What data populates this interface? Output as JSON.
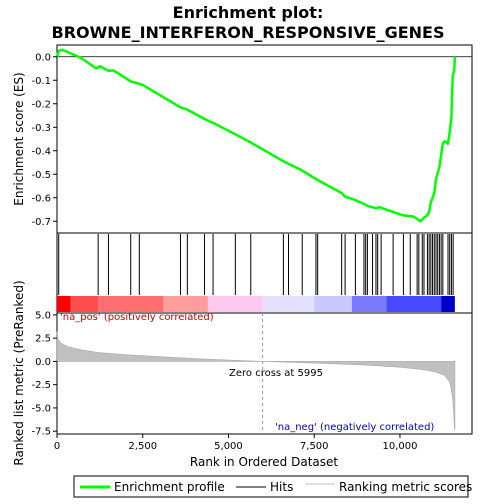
{
  "chart_data": {
    "type": "line",
    "title": "Enrichment plot:\nBROWNE_INTERFERON_RESPONSIVE_GENES",
    "title_lines": [
      "Enrichment plot:",
      "BROWNE_INTERFERON_RESPONSIVE_GENES"
    ],
    "es_panel": {
      "ylabel": "Enrichment score (ES)",
      "ylim": [
        -0.75,
        0.05
      ],
      "yticks": [
        0.0,
        -0.1,
        -0.2,
        -0.3,
        -0.4,
        -0.5,
        -0.6,
        -0.7
      ],
      "ytick_labels": [
        "0.0",
        "-0.1",
        "-0.2",
        "-0.3",
        "-0.4",
        "-0.5",
        "-0.6",
        "-0.7"
      ],
      "series": [
        {
          "name": "Enrichment profile",
          "color": "#00ff00",
          "points": [
            [
              0,
              0.0
            ],
            [
              50,
              0.025
            ],
            [
              150,
              0.03
            ],
            [
              700,
              -0.005
            ],
            [
              1150,
              -0.05
            ],
            [
              1200,
              -0.045
            ],
            [
              1250,
              -0.04
            ],
            [
              1500,
              -0.06
            ],
            [
              1650,
              -0.058
            ],
            [
              2150,
              -0.105
            ],
            [
              2400,
              -0.115
            ],
            [
              2500,
              -0.12
            ],
            [
              3600,
              -0.215
            ],
            [
              3800,
              -0.225
            ],
            [
              4300,
              -0.265
            ],
            [
              4600,
              -0.285
            ],
            [
              5200,
              -0.33
            ],
            [
              5650,
              -0.365
            ],
            [
              6600,
              -0.445
            ],
            [
              6750,
              -0.455
            ],
            [
              7100,
              -0.48
            ],
            [
              7550,
              -0.52
            ],
            [
              7600,
              -0.525
            ],
            [
              8300,
              -0.58
            ],
            [
              8400,
              -0.595
            ],
            [
              8700,
              -0.61
            ],
            [
              9000,
              -0.63
            ],
            [
              9050,
              -0.635
            ],
            [
              9200,
              -0.64
            ],
            [
              9300,
              -0.645
            ],
            [
              9400,
              -0.64
            ],
            [
              9800,
              -0.66
            ],
            [
              10100,
              -0.675
            ],
            [
              10400,
              -0.68
            ],
            [
              10550,
              -0.695
            ],
            [
              10600,
              -0.7
            ],
            [
              10700,
              -0.685
            ],
            [
              10800,
              -0.675
            ],
            [
              10850,
              -0.66
            ],
            [
              10900,
              -0.62
            ],
            [
              11000,
              -0.58
            ],
            [
              11050,
              -0.52
            ],
            [
              11150,
              -0.47
            ],
            [
              11200,
              -0.42
            ],
            [
              11250,
              -0.37
            ],
            [
              11300,
              -0.36
            ],
            [
              11400,
              -0.37
            ],
            [
              11450,
              -0.32
            ],
            [
              11500,
              -0.26
            ],
            [
              11520,
              -0.15
            ],
            [
              11540,
              -0.08
            ],
            [
              11560,
              -0.07
            ],
            [
              11580,
              -0.06
            ],
            [
              11600,
              0.0
            ]
          ]
        }
      ]
    },
    "hits_panel": {
      "hits_x": [
        50,
        1200,
        1500,
        2150,
        2400,
        3600,
        3800,
        4300,
        4550,
        5200,
        5650,
        6600,
        6750,
        7150,
        7550,
        7600,
        8300,
        8400,
        8700,
        8950,
        9000,
        9050,
        9200,
        9300,
        9350,
        9450,
        9800,
        10100,
        10300,
        10500,
        10550,
        10650,
        10700,
        10800,
        10850,
        10900,
        10950,
        11000,
        11050,
        11100,
        11150,
        11200,
        11250,
        11400,
        11450,
        11500,
        11550
      ]
    },
    "heat_colors": [
      "#ff0000",
      "#ff8c8c",
      "#ffc8ee",
      "#d8d8ff",
      "#6666ff",
      "#0000cc"
    ],
    "metric_panel": {
      "ylabel": "Ranked list metric (PreRanked)",
      "ylim": [
        -7.8,
        5.2
      ],
      "yticks": [
        5.0,
        2.5,
        0.0,
        -2.5,
        -5.0,
        -7.5
      ],
      "ytick_labels": [
        "5.0",
        "2.5",
        "0.0",
        "-2.5",
        "-5.0",
        "-7.5"
      ],
      "points": [
        [
          0,
          3.2
        ],
        [
          30,
          2.4
        ],
        [
          100,
          2.0
        ],
        [
          300,
          1.6
        ],
        [
          700,
          1.25
        ],
        [
          1200,
          0.95
        ],
        [
          2000,
          0.72
        ],
        [
          3000,
          0.5
        ],
        [
          4000,
          0.3
        ],
        [
          5000,
          0.14
        ],
        [
          5995,
          0.0
        ],
        [
          7000,
          -0.12
        ],
        [
          8000,
          -0.25
        ],
        [
          9000,
          -0.4
        ],
        [
          10000,
          -0.62
        ],
        [
          10600,
          -0.85
        ],
        [
          11000,
          -1.1
        ],
        [
          11300,
          -1.5
        ],
        [
          11450,
          -2.2
        ],
        [
          11520,
          -3.5
        ],
        [
          11560,
          -5.0
        ],
        [
          11590,
          -7.3
        ],
        [
          11600,
          -7.3
        ]
      ],
      "pos_label": "'na_pos' (positively correlated)",
      "neg_label": "'na_neg' (negatively correlated)",
      "zero_cross_label": "Zero cross at 5995",
      "zero_cross": 5995
    },
    "xlabel": "Rank in Ordered Dataset",
    "xlim": [
      0,
      12100
    ],
    "xticks": [
      0,
      2500,
      5000,
      7500,
      10000
    ],
    "xtick_labels": [
      "0",
      "2,500",
      "5,000",
      "7,500",
      "10,000"
    ],
    "legend": {
      "placement": "bottom",
      "entries": [
        {
          "label": "Enrichment profile",
          "color": "#00ff00"
        },
        {
          "label": "Hits",
          "color": "#000000"
        },
        {
          "label": "Ranking metric scores",
          "color": "#c0c0c0"
        }
      ]
    }
  }
}
